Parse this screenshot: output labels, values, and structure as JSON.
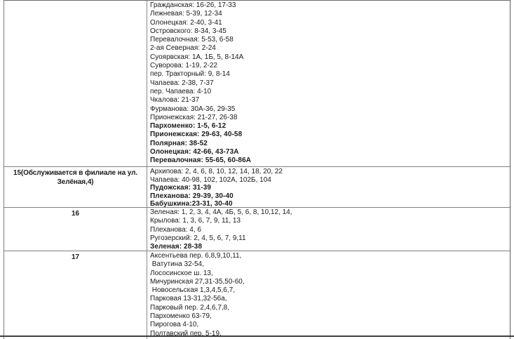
{
  "colors": {
    "background": "#ffffff",
    "text": "#1a1a1a",
    "border_inner": "#808080",
    "border_outer": "#5a5a5a",
    "bottom_rule": "#3f3f3f"
  },
  "table": {
    "rows": [
      {
        "zone": "",
        "streets": [
          {
            "text": "Гражданская: 16-26, 17-33",
            "bold": false
          },
          {
            "text": "Лежневая: 5-39, 12-34",
            "bold": false
          },
          {
            "text": "Олонецкая: 2-40, 3-41",
            "bold": false
          },
          {
            "text": "Островского: 8-34, 3-45",
            "bold": false
          },
          {
            "text": "Перевалочная: 5-53, 6-58",
            "bold": false
          },
          {
            "text": "2-ая Северная: 2-24",
            "bold": false
          },
          {
            "text": "Суоярвская: 1А, 1Б, 5, 8-14А",
            "bold": false
          },
          {
            "text": "Суворова: 1-19, 2-22",
            "bold": false
          },
          {
            "text": "пер. Тракторный: 9, 8-14",
            "bold": false
          },
          {
            "text": "Чапаева: 2-38, 7-37",
            "bold": false
          },
          {
            "text": "пер. Чапаева: 4-10",
            "bold": false
          },
          {
            "text": "Чкалова: 21-37",
            "bold": false
          },
          {
            "text": "Фурманова: 30А-36, 29-35",
            "bold": false
          },
          {
            "text": "Прионежская: 21-27, 26-38",
            "bold": false
          },
          {
            "text": "Пархоменко: 1-5, 6-12",
            "bold": true
          },
          {
            "text": "Прионежская: 29-63, 40-58",
            "bold": true
          },
          {
            "text": "Полярная: 38-52",
            "bold": true
          },
          {
            "text": "Олонецкая: 42-66, 43-73А",
            "bold": true
          },
          {
            "text": "Перевалочная: 55-65, 60-86А",
            "bold": true
          }
        ]
      },
      {
        "zone": "15(Обслуживается в филиале на ул. Зелёная,4)",
        "streets": [
          {
            "text": "Архипова: 2, 4, 6, 8, 10, 12, 14, 18, 20, 22",
            "bold": false
          },
          {
            "text": "Чапаева: 40-98, 102, 102А, 102Б, 104",
            "bold": false
          },
          {
            "text": "Пудожская: 31-39",
            "bold": true
          },
          {
            "text": "Плеханова: 29-39, 30-40",
            "bold": true
          },
          {
            "text": "Бабушкина:23-31, 30-40",
            "bold": true
          }
        ]
      },
      {
        "zone": "16",
        "streets": [
          {
            "text": "Зеленая: 1, 2, 3, 4, 4А, 4Б, 5, 6, 8, 10,12, 14,",
            "bold": false
          },
          {
            "text": "Крылова: 1, 3, 6, 7, 9, 11, 13",
            "bold": false
          },
          {
            "text": "Плеханова: 4, 6",
            "bold": false
          },
          {
            "text": "Ругозерский: 2, 4, 5, 6, 7, 9,11",
            "bold": false
          },
          {
            "text": "Зеленая: 28-38",
            "bold": true
          }
        ]
      },
      {
        "zone": "17",
        "streets": [
          {
            "text": "Аксентьева пер. 6,8,9,10,11,",
            "bold": false
          },
          {
            "text": " Ватутина 32-54,",
            "bold": false
          },
          {
            "text": "Лососинское ш. 13,",
            "bold": false
          },
          {
            "text": "Мичуринская 27,31-35,50-60,",
            "bold": false
          },
          {
            "text": " Новосельская 1,3,4,5,6,7,",
            "bold": false
          },
          {
            "text": "Парковая 13-31,32-56а,",
            "bold": false
          },
          {
            "text": "Парковый пер. 2,4,6,7,8,",
            "bold": false
          },
          {
            "text": "Пархоменко 63-79,",
            "bold": false
          },
          {
            "text": "Пирогова 4-10,",
            "bold": false
          },
          {
            "text": "Полтавский пер. 5-19,",
            "bold": false
          }
        ]
      }
    ]
  }
}
